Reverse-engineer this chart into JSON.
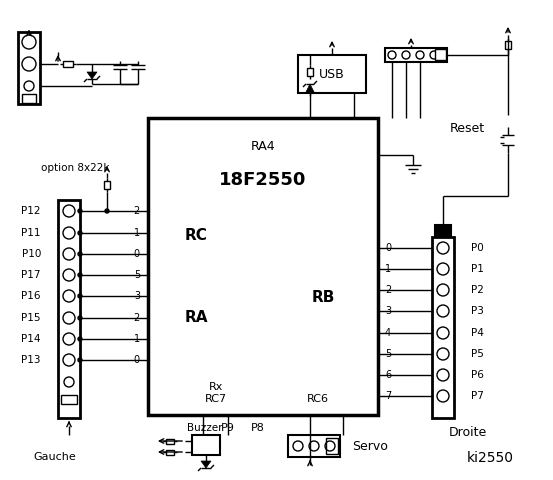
{
  "bg_color": "#ffffff",
  "line_color": "#000000",
  "title": "ki2550",
  "left_pins_labels": [
    "P12",
    "P11",
    "P10",
    "P17",
    "P16",
    "P15",
    "P14",
    "P13"
  ],
  "left_pins_numbers": [
    "2",
    "1",
    "0",
    "5",
    "3",
    "2",
    "1",
    "0"
  ],
  "right_pins_labels": [
    "P0",
    "P1",
    "P2",
    "P3",
    "P4",
    "P5",
    "P6",
    "P7"
  ],
  "right_pins_numbers": [
    "0",
    "1",
    "2",
    "3",
    "4",
    "5",
    "6",
    "7"
  ],
  "usb_label": "USB",
  "reset_label": "Reset",
  "gauche_label": "Gauche",
  "droite_label": "Droite",
  "buzzer_label": "Buzzer",
  "servo_label": "Servo",
  "p8_label": "P8",
  "p9_label": "P9",
  "option_label": "option 8x22k",
  "chip_label": "18F2550",
  "ra4_label": "RA4",
  "rc_label": "RC",
  "ra_label": "RA",
  "rb_label": "RB",
  "rc6_label": "RC6",
  "rc7_label": "RC7",
  "rx_label": "Rx"
}
